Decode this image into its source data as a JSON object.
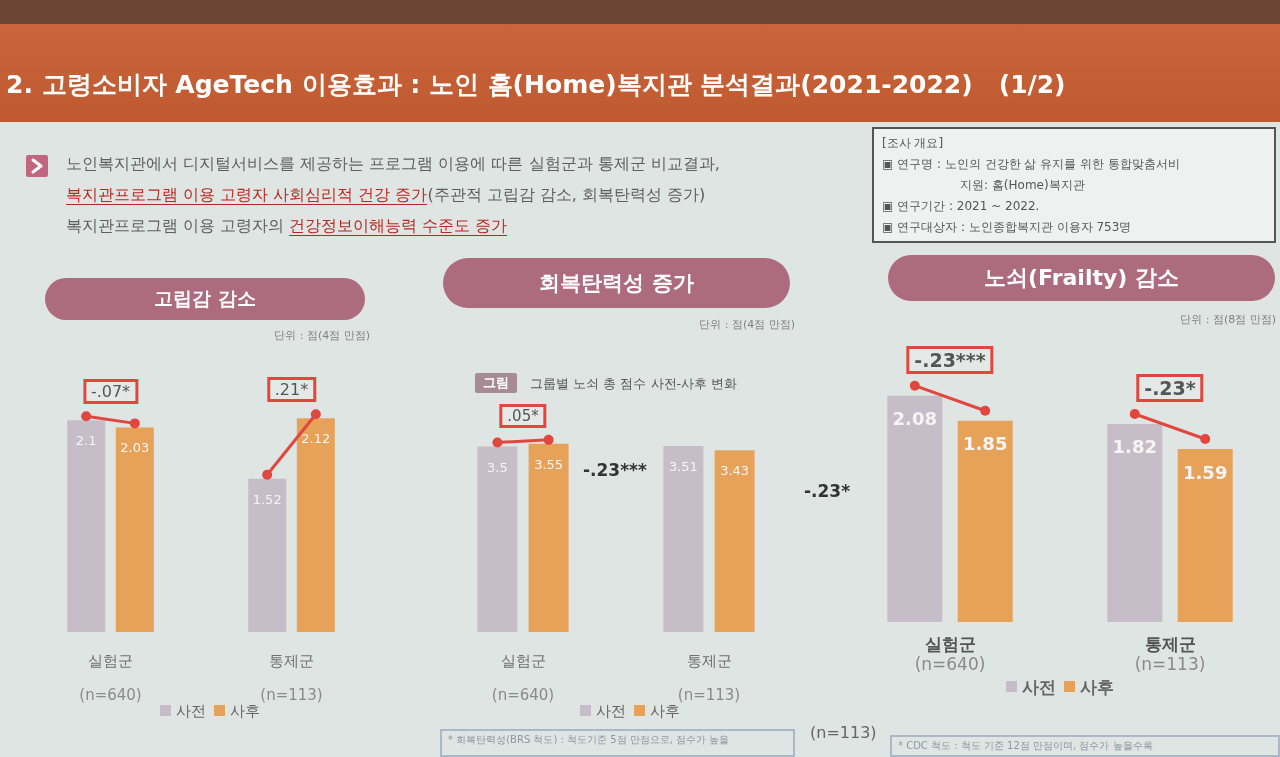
{
  "chart_data": [
    {
      "type": "other",
      "title": "2. 고령소비자 AgeTech 이용효과 : 노인 홈(Home)복지관 분석결과(2021-2022)   (1/2)",
      "annotations": [
        "노인복지관에서 디지털서비스를 제공하는 프로그램 이용에 따른 실험군과 통제군 비교결과,",
        "복지관프로그램 이용 고령자 사회심리적 건강 증가",
        "(주관적 고립감 감소, 회복탄력성 증가)",
        "복지관프로그램 이용 고령자의 ",
        "건강정보이해능력 수준도 증가"
      ]
    },
    {
      "type": "other",
      "title": "[조사 개요]",
      "annotations": [
        "▣ 연구명 : 노인의 건강한 삶 유지를 위한 통합맞춤서비",
        "지원: 홈(Home)복지관",
        "▣ 연구기간 : 2021 ~ 2022.",
        "▣ 연구대상자 : 노인종합복지관 이용자 753명"
      ]
    },
    {
      "type": "bar",
      "title": "고립감 감소",
      "subtitle": "단위 : 점(4점 만점)",
      "categories": [
        "실험군\n(n=640)",
        "통제군\n(n=113)"
      ],
      "series": [
        {
          "name": "사전",
          "color": "#c7bdc8",
          "values": [
            2.1,
            1.52
          ]
        },
        {
          "name": "사후",
          "color": "#e7a259",
          "values": [
            2.03,
            2.12
          ]
        }
      ],
      "data_labels": true,
      "legend": "bottom",
      "annotations": [
        "-.07*",
        ".21*"
      ]
    },
    {
      "type": "bar",
      "title": "회복탄력성 증가",
      "subtitle": "단위 : 점(4점 만점)",
      "categories": [
        "실험군\n(n=640)",
        "통제군\n(n=113)"
      ],
      "series": [
        {
          "name": "사전",
          "color": "#c7bdc8",
          "values": [
            3.5,
            3.51
          ]
        },
        {
          "name": "사후",
          "color": "#e7a259",
          "values": [
            3.55,
            3.43
          ]
        }
      ],
      "data_labels": true,
      "legend": "bottom",
      "annotations": [
        ".05*",
        "그림",
        "그룹별 노쇠 총 점수 사전-사후 변화",
        "-.23***",
        "-.23*",
        "(n=113)",
        "* 회복탄력성(BRS 척도) : 척도기준 5점 만점으로, 점수가 높을"
      ]
    },
    {
      "type": "bar",
      "title": "노쇠(Frailty) 감소",
      "subtitle": "단위 : 점(8점 만점)",
      "categories": [
        "실험군\n(n=640)",
        "통제군\n(n=113)"
      ],
      "series": [
        {
          "name": "사전",
          "color": "#c7bdc8",
          "values": [
            2.08,
            1.82
          ]
        },
        {
          "name": "사후",
          "color": "#e7a259",
          "values": [
            1.85,
            1.59
          ]
        }
      ],
      "data_labels": true,
      "legend": "bottom",
      "annotations": [
        "-.23***",
        "-.23*",
        "* CDC 척도 : 척도 기준 12점 만점이며, 점수가 높을수록"
      ]
    }
  ]
}
